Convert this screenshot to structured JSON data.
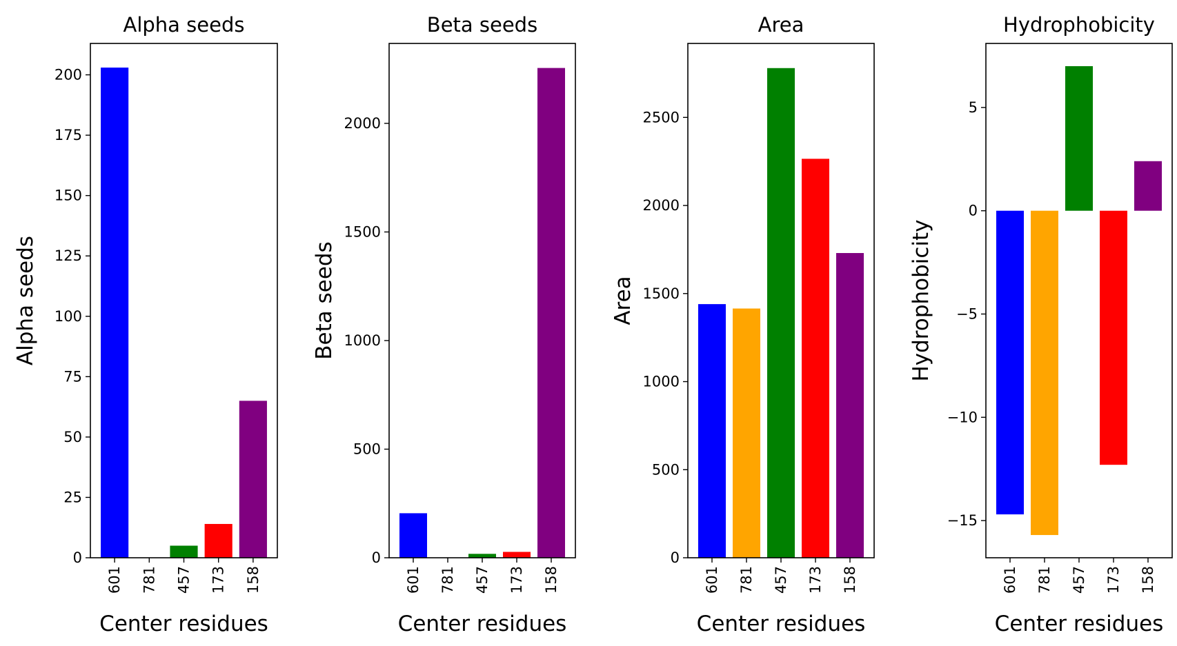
{
  "chart_data": [
    {
      "type": "bar",
      "title": "Alpha seeds",
      "xlabel": "Center residues",
      "ylabel": "Alpha seeds",
      "categories": [
        "601",
        "781",
        "457",
        "173",
        "158"
      ],
      "values": [
        203,
        0,
        5,
        14,
        65
      ],
      "colors": [
        "#0000ff",
        "#ffa500",
        "#008000",
        "#ff0000",
        "#800080"
      ],
      "ylim": [
        0,
        213
      ],
      "yticks": [
        0,
        25,
        50,
        75,
        100,
        125,
        150,
        175,
        200
      ],
      "grid": false,
      "legend": "none"
    },
    {
      "type": "bar",
      "title": "Beta seeds",
      "xlabel": "Center residues",
      "ylabel": "Beta seeds",
      "categories": [
        "601",
        "781",
        "457",
        "173",
        "158"
      ],
      "values": [
        205,
        0,
        18,
        27,
        2255
      ],
      "colors": [
        "#0000ff",
        "#ffa500",
        "#008000",
        "#ff0000",
        "#800080"
      ],
      "ylim": [
        0,
        2368
      ],
      "yticks": [
        0,
        500,
        1000,
        1500,
        2000
      ],
      "grid": false,
      "legend": "none"
    },
    {
      "type": "bar",
      "title": "Area",
      "xlabel": "Center residues",
      "ylabel": "Area",
      "categories": [
        "601",
        "781",
        "457",
        "173",
        "158"
      ],
      "values": [
        1440,
        1415,
        2780,
        2265,
        1730
      ],
      "colors": [
        "#0000ff",
        "#ffa500",
        "#008000",
        "#ff0000",
        "#800080"
      ],
      "ylim": [
        0,
        2920
      ],
      "yticks": [
        0,
        500,
        1000,
        1500,
        2000,
        2500
      ],
      "grid": false,
      "legend": "none"
    },
    {
      "type": "bar",
      "title": "Hydrophobicity",
      "xlabel": "Center residues",
      "ylabel": "Hydrophobicity",
      "categories": [
        "601",
        "781",
        "457",
        "173",
        "158"
      ],
      "values": [
        -14.7,
        -15.7,
        7.0,
        -12.3,
        2.4
      ],
      "colors": [
        "#0000ff",
        "#ffa500",
        "#008000",
        "#ff0000",
        "#800080"
      ],
      "ylim": [
        -16.8,
        8.1
      ],
      "yticks": [
        -15,
        -10,
        -5,
        0,
        5
      ],
      "grid": false,
      "legend": "none"
    }
  ]
}
